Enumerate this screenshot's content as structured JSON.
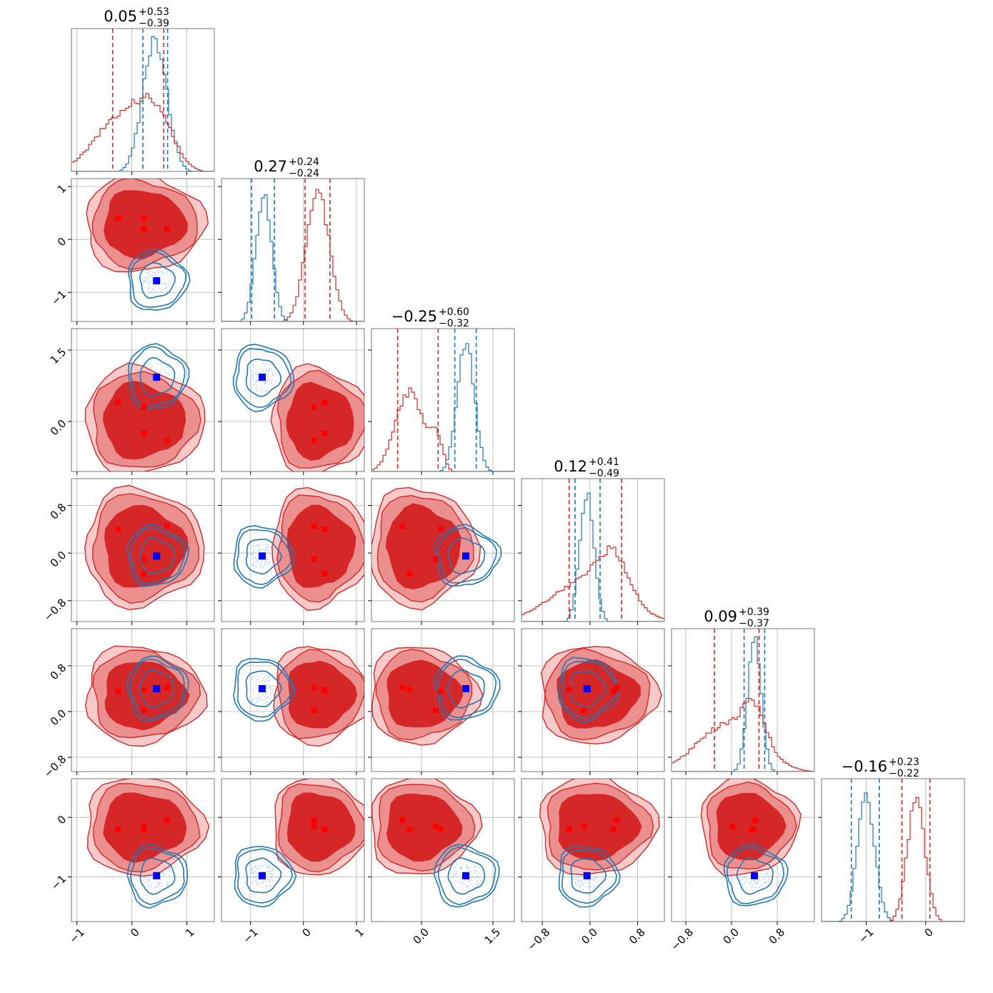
{
  "colors": {
    "series_a": "#d62728",
    "series_b": "#1f77b4",
    "marker_a": "#ff0000",
    "marker_b": "#0000ff"
  },
  "titles": [
    {
      "main": "0.05",
      "plus": "+0.53",
      "minus": "−0.39"
    },
    {
      "main": "0.27",
      "plus": "+0.24",
      "minus": "−0.24"
    },
    {
      "main": "−0.25",
      "plus": "+0.60",
      "minus": "−0.32"
    },
    {
      "main": "0.12",
      "plus": "+0.41",
      "minus": "−0.49"
    },
    {
      "main": "0.09",
      "plus": "+0.39",
      "minus": "−0.37"
    },
    {
      "main": "−0.16",
      "plus": "+0.23",
      "minus": "−0.22"
    }
  ],
  "chart_data": {
    "type": "corner",
    "grid": true,
    "n_params": 6,
    "series": [
      {
        "color_key": "series_a",
        "style": "filled-contours",
        "marker": "square"
      },
      {
        "color_key": "series_b",
        "style": "line-contours",
        "marker": "square"
      }
    ],
    "axes": [
      {
        "range": [
          -1.1,
          1.5
        ],
        "ticks": [
          {
            "v": -1,
            "label": "−1"
          },
          {
            "v": 0,
            "label": "0"
          },
          {
            "v": 1,
            "label": "1"
          }
        ]
      },
      {
        "range": [
          -1.55,
          1.15
        ],
        "ticks": [
          {
            "v": -1,
            "label": "−1"
          },
          {
            "v": 0,
            "label": "0"
          },
          {
            "v": 1,
            "label": "1"
          }
        ]
      },
      {
        "range": [
          -1.05,
          1.95
        ],
        "ticks": [
          {
            "v": 0,
            "label": "0.0"
          },
          {
            "v": 1.5,
            "label": "1.5"
          }
        ]
      },
      {
        "range": [
          -1.15,
          1.25
        ],
        "ticks": [
          {
            "v": -0.8,
            "label": "−0.8"
          },
          {
            "v": 0,
            "label": "0.0"
          },
          {
            "v": 0.8,
            "label": "0.8"
          }
        ]
      },
      {
        "range": [
          -1.05,
          1.45
        ],
        "ticks": [
          {
            "v": -0.8,
            "label": "−0.8"
          },
          {
            "v": 0,
            "label": "0.0"
          },
          {
            "v": 0.8,
            "label": "0.8"
          }
        ]
      },
      {
        "range": [
          -1.75,
          0.65
        ],
        "ticks": [
          {
            "v": -1,
            "label": "−1"
          },
          {
            "v": 0,
            "label": "0"
          }
        ]
      }
    ],
    "hist": [
      {
        "a": {
          "vlines": [
            -0.35,
            0.58
          ],
          "peaks": [
            [
              -0.15,
              0.42,
              0.5
            ],
            [
              0.45,
              0.3,
              0.3
            ]
          ]
        },
        "b": {
          "vlines": [
            0.2,
            0.65
          ],
          "peaks": [
            [
              0.42,
              0.95,
              0.22
            ]
          ]
        }
      },
      {
        "a": {
          "vlines": [
            0.03,
            0.5
          ],
          "peaks": [
            [
              0.27,
              0.95,
              0.22
            ]
          ]
        },
        "b": {
          "vlines": [
            -0.98,
            -0.55
          ],
          "peaks": [
            [
              -0.75,
              0.92,
              0.15
            ]
          ]
        }
      },
      {
        "a": {
          "vlines": [
            -0.5,
            0.35
          ],
          "peaks": [
            [
              -0.25,
              0.58,
              0.3
            ],
            [
              0.33,
              0.22,
              0.12
            ]
          ]
        },
        "b": {
          "vlines": [
            0.7,
            1.15
          ],
          "peaks": [
            [
              0.93,
              0.95,
              0.18
            ]
          ]
        }
      },
      {
        "a": {
          "vlines": [
            -0.35,
            0.53
          ],
          "peaks": [
            [
              -0.05,
              0.3,
              0.6
            ],
            [
              0.4,
              0.3,
              0.25
            ]
          ]
        },
        "b": {
          "vlines": [
            -0.25,
            0.17
          ],
          "peaks": [
            [
              -0.05,
              0.95,
              0.12
            ]
          ]
        }
      },
      {
        "a": {
          "vlines": [
            -0.3,
            0.48
          ],
          "peaks": [
            [
              -0.05,
              0.35,
              0.55
            ],
            [
              0.4,
              0.25,
              0.2
            ]
          ]
        },
        "b": {
          "vlines": [
            0.22,
            0.58
          ],
          "peaks": [
            [
              0.4,
              0.95,
              0.12
            ]
          ]
        }
      },
      {
        "a": {
          "vlines": [
            -0.4,
            0.07
          ],
          "peaks": [
            [
              -0.16,
              0.9,
              0.15
            ]
          ]
        },
        "b": {
          "vlines": [
            -1.25,
            -0.78
          ],
          "peaks": [
            [
              -1.0,
              0.9,
              0.15
            ]
          ]
        }
      }
    ],
    "centers": {
      "a": [
        [
          -0.25,
          0.22,
          0.64,
          0.22
        ],
        [
          0.4,
          0.2,
          0.2,
          0.4
        ],
        [
          0.4,
          0.3,
          -0.4,
          -0.25
        ],
        [
          0.4,
          -0.1,
          0.45,
          -0.35
        ],
        [
          0.35,
          0.02,
          0.42,
          0.38
        ],
        [
          -0.2,
          -0.15,
          -0.05,
          -0.2
        ]
      ],
      "b": [
        0.45,
        -0.78,
        0.93,
        -0.05,
        0.4,
        -0.98
      ]
    },
    "spread": {
      "a": [
        0.42,
        0.26,
        0.5,
        0.42,
        0.4,
        0.22
      ],
      "b": [
        0.13,
        0.11,
        0.16,
        0.1,
        0.13,
        0.1
      ]
    }
  }
}
